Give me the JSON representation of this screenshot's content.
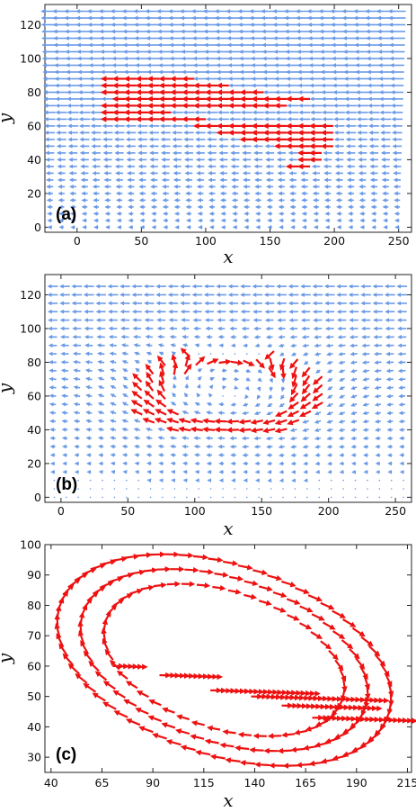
{
  "colors": {
    "blue": "#6b9ae6",
    "red": "#ee1111"
  },
  "chart_data": [
    {
      "type": "quiver",
      "panel_label": "(a)",
      "xlabel": "x",
      "ylabel": "y",
      "xlim": [
        -25,
        260
      ],
      "ylim": [
        -3,
        132
      ],
      "xticks": [
        0,
        50,
        100,
        150,
        200,
        250
      ],
      "yticks": [
        0,
        20,
        40,
        60,
        80,
        100,
        120
      ],
      "xtick_labels": [
        "0",
        "50",
        "100",
        "150",
        "200",
        "250"
      ],
      "ytick_labels": [
        "0",
        "20",
        "40",
        "60",
        "80",
        "100",
        "120"
      ],
      "field": "uniform shear flow pointing in -x direction; speed increases with y (near zero at y=0, large at y=128)",
      "red_region": "vortex particles located 20<x<200, 35<y<90, arrows pointing -x",
      "grid": false
    },
    {
      "type": "quiver",
      "panel_label": "(b)",
      "xlabel": "x",
      "ylabel": "y",
      "xlim": [
        -12,
        262
      ],
      "ylim": [
        -3,
        132
      ],
      "xticks": [
        0,
        50,
        100,
        150,
        200,
        250
      ],
      "yticks": [
        0,
        20,
        40,
        60,
        80,
        100,
        120
      ],
      "xtick_labels": [
        "0",
        "50",
        "100",
        "150",
        "200",
        "250"
      ],
      "ytick_labels": [
        "0",
        "20",
        "40",
        "60",
        "80",
        "100",
        "120"
      ],
      "field": "shear flow pointing -x deflected around a rotating vortex structure between x=50 and x=200",
      "red_region": "vortex ring particles around center (125, 62)",
      "grid": false
    },
    {
      "type": "quiver",
      "panel_label": "(c)",
      "xlabel": "x",
      "ylabel": "y",
      "xlim": [
        37,
        217
      ],
      "ylim": [
        25,
        100
      ],
      "xticks": [
        40,
        65,
        90,
        115,
        140,
        165,
        190,
        215
      ],
      "yticks": [
        30,
        40,
        50,
        60,
        70,
        80,
        90,
        100
      ],
      "xtick_labels": [
        "40",
        "65",
        "90",
        "115",
        "140",
        "165",
        "190",
        "215"
      ],
      "ytick_labels": [
        "30",
        "40",
        "50",
        "60",
        "70",
        "80",
        "90",
        "100"
      ],
      "field": "red vortex particles only, circulating clockwise around center (125, 62)",
      "grid": false
    }
  ]
}
